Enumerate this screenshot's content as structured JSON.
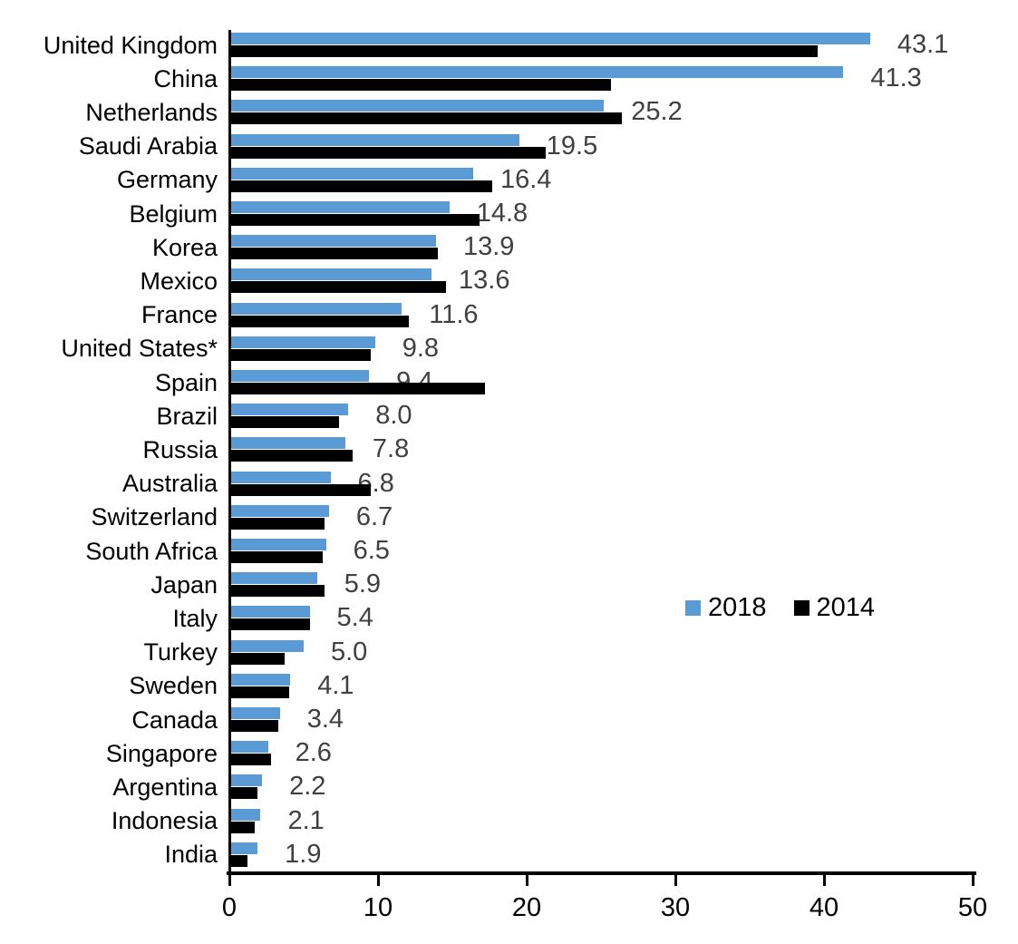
{
  "chart_data": {
    "type": "bar",
    "orientation": "horizontal",
    "title": "",
    "xlabel": "",
    "ylabel": "",
    "xlim": [
      0,
      50
    ],
    "xticks": [
      "0",
      "10",
      "20",
      "30",
      "40",
      "50"
    ],
    "xtick_values": [
      0,
      10,
      20,
      30,
      40,
      50
    ],
    "grid": false,
    "legend_position": "middle-right",
    "categories": [
      "United Kingdom",
      "China",
      "Netherlands",
      "Saudi Arabia",
      "Germany",
      "Belgium",
      "Korea",
      "Mexico",
      "France",
      "United States*",
      "Spain",
      "Brazil",
      "Russia",
      "Australia",
      "Switzerland",
      "South Africa",
      "Japan",
      "Italy",
      "Turkey",
      "Sweden",
      "Canada",
      "Singapore",
      "Argentina",
      "Indonesia",
      "India"
    ],
    "series": [
      {
        "name": "2018",
        "color": "#5B9BD5",
        "values": [
          43.1,
          41.3,
          25.2,
          19.5,
          16.4,
          14.8,
          13.9,
          13.6,
          11.6,
          9.8,
          9.4,
          8.0,
          7.8,
          6.8,
          6.7,
          6.5,
          5.9,
          5.4,
          5.0,
          4.1,
          3.4,
          2.6,
          2.2,
          2.1,
          1.9
        ]
      },
      {
        "name": "2014",
        "color": "#000000",
        "values": [
          39.6,
          25.7,
          26.4,
          21.3,
          17.7,
          16.8,
          14.0,
          14.6,
          12.1,
          9.5,
          17.2,
          7.4,
          8.3,
          9.5,
          6.4,
          6.3,
          6.4,
          5.4,
          3.7,
          4.0,
          3.3,
          2.8,
          1.9,
          1.7,
          1.2
        ]
      }
    ],
    "data_labels": {
      "labeled_series": "2018",
      "color": "#404040",
      "values": [
        "43.1",
        "41.3",
        "25.2",
        "19.5",
        "16.4",
        "14.8",
        "13.9",
        "13.6",
        "11.6",
        "9.8",
        "9.4",
        "8.0",
        "7.8",
        "6.8",
        "6.7",
        "6.5",
        "5.9",
        "5.4",
        "5.0",
        "4.1",
        "3.4",
        "2.6",
        "2.2",
        "2.1",
        "1.9"
      ]
    },
    "legend": [
      {
        "label": "2018",
        "color": "#5B9BD5"
      },
      {
        "label": "2014",
        "color": "#000000"
      }
    ]
  }
}
